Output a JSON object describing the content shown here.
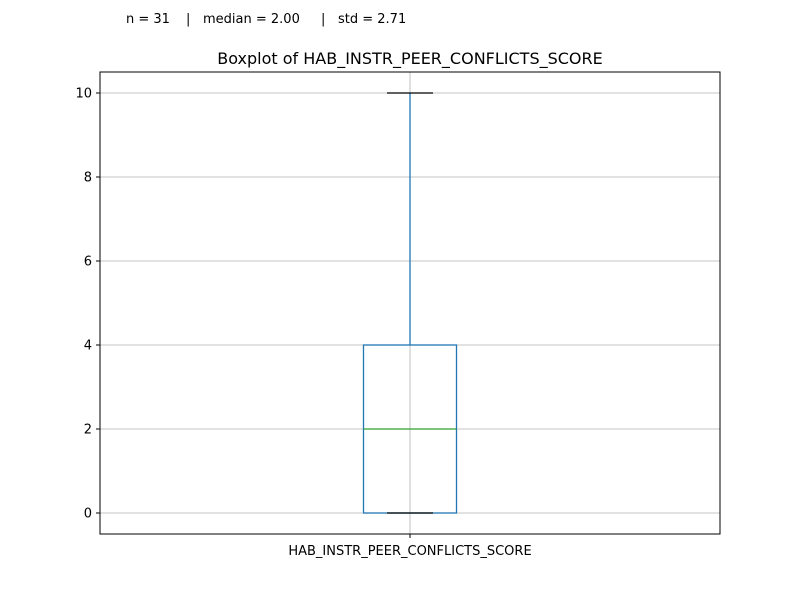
{
  "stats_line": {
    "n": "n = 31",
    "separator": "|",
    "median": "median = 2.00",
    "std": "std = 2.71"
  },
  "chart_data": {
    "type": "box",
    "title": "Boxplot of HAB_INSTR_PEER_CONFLICTS_SCORE",
    "xlabel": "",
    "ylabel": "",
    "categories": [
      "HAB_INSTR_PEER_CONFLICTS_SCORE"
    ],
    "boxes": [
      {
        "category": "HAB_INSTR_PEER_CONFLICTS_SCORE",
        "whisker_low": 0,
        "q1": 0,
        "median": 2,
        "q3": 4,
        "whisker_high": 10
      }
    ],
    "ylim": [
      -0.5,
      10.5
    ],
    "yticks": [
      0,
      2,
      4,
      6,
      8,
      10
    ],
    "grid": true,
    "colors": {
      "box": "#1f77b4",
      "median": "#2ca02c",
      "cap": "#000000",
      "grid": "#b0b0b0",
      "axes": "#000000"
    }
  }
}
